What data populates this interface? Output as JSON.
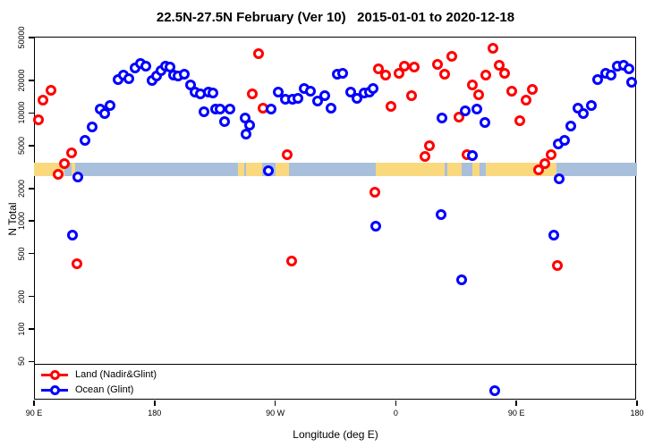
{
  "title": "22.5N-27.5N February (Ver 10)   2015-01-01 to 2020-12-18",
  "colors": {
    "land_marker": "#ff0000",
    "ocean_marker": "#0000ff",
    "map_land": "#fad87e",
    "map_ocean": "#a9c0dc",
    "axis": "#000000"
  },
  "legend": {
    "items": [
      {
        "label": "Land (Nadir&Glint)",
        "color": "#ff0000"
      },
      {
        "label": "Ocean (Glint)",
        "color": "#0000ff"
      }
    ]
  },
  "chart_data": {
    "type": "scatter",
    "title": "22.5N-27.5N February (Ver 10)   2015-01-01 to 2020-12-18",
    "xlabel": "Longitude (deg E)",
    "ylabel": "N Total",
    "y_scale": "log",
    "ylim": [
      22,
      51000
    ],
    "y_ticks": [
      50,
      100,
      200,
      500,
      1000,
      2000,
      5000,
      10000,
      20000,
      50000
    ],
    "x_axis_deg_span": [
      0,
      450
    ],
    "x_ticks": [
      {
        "deg": 0,
        "label": "90 E"
      },
      {
        "deg": 90,
        "label": "180"
      },
      {
        "deg": 180,
        "label": "90 W"
      },
      {
        "deg": 270,
        "label": "0"
      },
      {
        "deg": 360,
        "label": "90 E"
      },
      {
        "deg": 450,
        "label": "180"
      }
    ],
    "threshold_line_value": 48,
    "map_band": {
      "value_top": 3470,
      "value_bottom": 2600,
      "land_segments_deg": [
        [
          0,
          22.7
        ],
        [
          28.3,
          30.8
        ],
        [
          152.2,
          156.9
        ],
        [
          158.5,
          170.3
        ],
        [
          180.3,
          190.3
        ],
        [
          255.0,
          306.4
        ],
        [
          308.4,
          319.2
        ],
        [
          327.2,
          332.5
        ],
        [
          337.2,
          389.9
        ]
      ]
    },
    "series": [
      {
        "name": "Land (Nadir&Glint)",
        "color": "#ff0000",
        "points": [
          [
            3.3,
            8700
          ],
          [
            6.7,
            13200
          ],
          [
            12.7,
            16300
          ],
          [
            18.0,
            2700
          ],
          [
            22.7,
            3400
          ],
          [
            28.0,
            4300
          ],
          [
            32.0,
            400
          ],
          [
            162.9,
            15000
          ],
          [
            167.6,
            35500
          ],
          [
            170.9,
            11000
          ],
          [
            188.9,
            4100
          ],
          [
            192.3,
            430
          ],
          [
            254.4,
            1850
          ],
          [
            257.0,
            25800
          ],
          [
            262.4,
            22600
          ],
          [
            266.4,
            11600
          ],
          [
            272.4,
            23500
          ],
          [
            276.4,
            27300
          ],
          [
            281.7,
            14600
          ],
          [
            283.7,
            26800
          ],
          [
            291.8,
            4000
          ],
          [
            295.1,
            5000
          ],
          [
            301.1,
            28300
          ],
          [
            306.4,
            22900
          ],
          [
            311.8,
            33600
          ],
          [
            317.1,
            9200
          ],
          [
            323.1,
            4100
          ],
          [
            327.2,
            18300
          ],
          [
            331.8,
            14900
          ],
          [
            337.2,
            22600
          ],
          [
            342.5,
            39900
          ],
          [
            347.2,
            27900
          ],
          [
            351.2,
            23500
          ],
          [
            356.5,
            15900
          ],
          [
            362.5,
            8500
          ],
          [
            367.2,
            13200
          ],
          [
            371.9,
            16500
          ],
          [
            376.6,
            3000
          ],
          [
            381.3,
            3400
          ],
          [
            385.9,
            4100
          ],
          [
            390.6,
            390
          ]
        ]
      },
      {
        "name": "Ocean (Glint)",
        "color": "#0000ff",
        "points": [
          [
            28.7,
            740
          ],
          [
            32.7,
            2560
          ],
          [
            38.1,
            5600
          ],
          [
            43.4,
            7500
          ],
          [
            49.4,
            10800
          ],
          [
            52.7,
            9900
          ],
          [
            56.7,
            11700
          ],
          [
            62.8,
            20500
          ],
          [
            66.8,
            22600
          ],
          [
            70.8,
            20900
          ],
          [
            75.4,
            26400
          ],
          [
            79.4,
            29000
          ],
          [
            83.5,
            27300
          ],
          [
            88.1,
            20100
          ],
          [
            91.5,
            22200
          ],
          [
            94.8,
            24900
          ],
          [
            98.1,
            27300
          ],
          [
            101.5,
            26800
          ],
          [
            104.2,
            22600
          ],
          [
            107.5,
            22200
          ],
          [
            112.2,
            22900
          ],
          [
            116.8,
            18300
          ],
          [
            120.2,
            15700
          ],
          [
            124.2,
            15000
          ],
          [
            126.9,
            10300
          ],
          [
            130.2,
            15700
          ],
          [
            133.5,
            15300
          ],
          [
            135.5,
            10800
          ],
          [
            138.9,
            10800
          ],
          [
            142.2,
            8300
          ],
          [
            146.2,
            10800
          ],
          [
            157.6,
            9000
          ],
          [
            158.2,
            6400
          ],
          [
            160.9,
            7700
          ],
          [
            174.9,
            2900
          ],
          [
            176.9,
            10800
          ],
          [
            182.3,
            15700
          ],
          [
            187.6,
            13400
          ],
          [
            192.9,
            13400
          ],
          [
            196.9,
            13600
          ],
          [
            201.6,
            16900
          ],
          [
            206.3,
            15900
          ],
          [
            211.6,
            12900
          ],
          [
            217.0,
            14600
          ],
          [
            221.6,
            11000
          ],
          [
            226.3,
            22900
          ],
          [
            230.3,
            23200
          ],
          [
            236.3,
            15700
          ],
          [
            241.0,
            13700
          ],
          [
            246.4,
            15300
          ],
          [
            250.4,
            15700
          ],
          [
            253.0,
            16900
          ],
          [
            255.0,
            900
          ],
          [
            303.8,
            1150
          ],
          [
            304.4,
            9000
          ],
          [
            319.1,
            285
          ],
          [
            321.8,
            10500
          ],
          [
            327.2,
            4050
          ],
          [
            330.5,
            10900
          ],
          [
            336.5,
            8100
          ],
          [
            343.8,
            27
          ],
          [
            387.9,
            740
          ],
          [
            391.3,
            5200
          ],
          [
            391.9,
            2470
          ],
          [
            395.9,
            5600
          ],
          [
            400.6,
            7600
          ],
          [
            405.9,
            11100
          ],
          [
            409.9,
            9900
          ],
          [
            415.9,
            11700
          ],
          [
            420.6,
            20500
          ],
          [
            426.6,
            23200
          ],
          [
            430.6,
            22600
          ],
          [
            435.3,
            27300
          ],
          [
            440.0,
            27800
          ],
          [
            444.0,
            25800
          ],
          [
            446.0,
            19400
          ]
        ]
      }
    ]
  }
}
